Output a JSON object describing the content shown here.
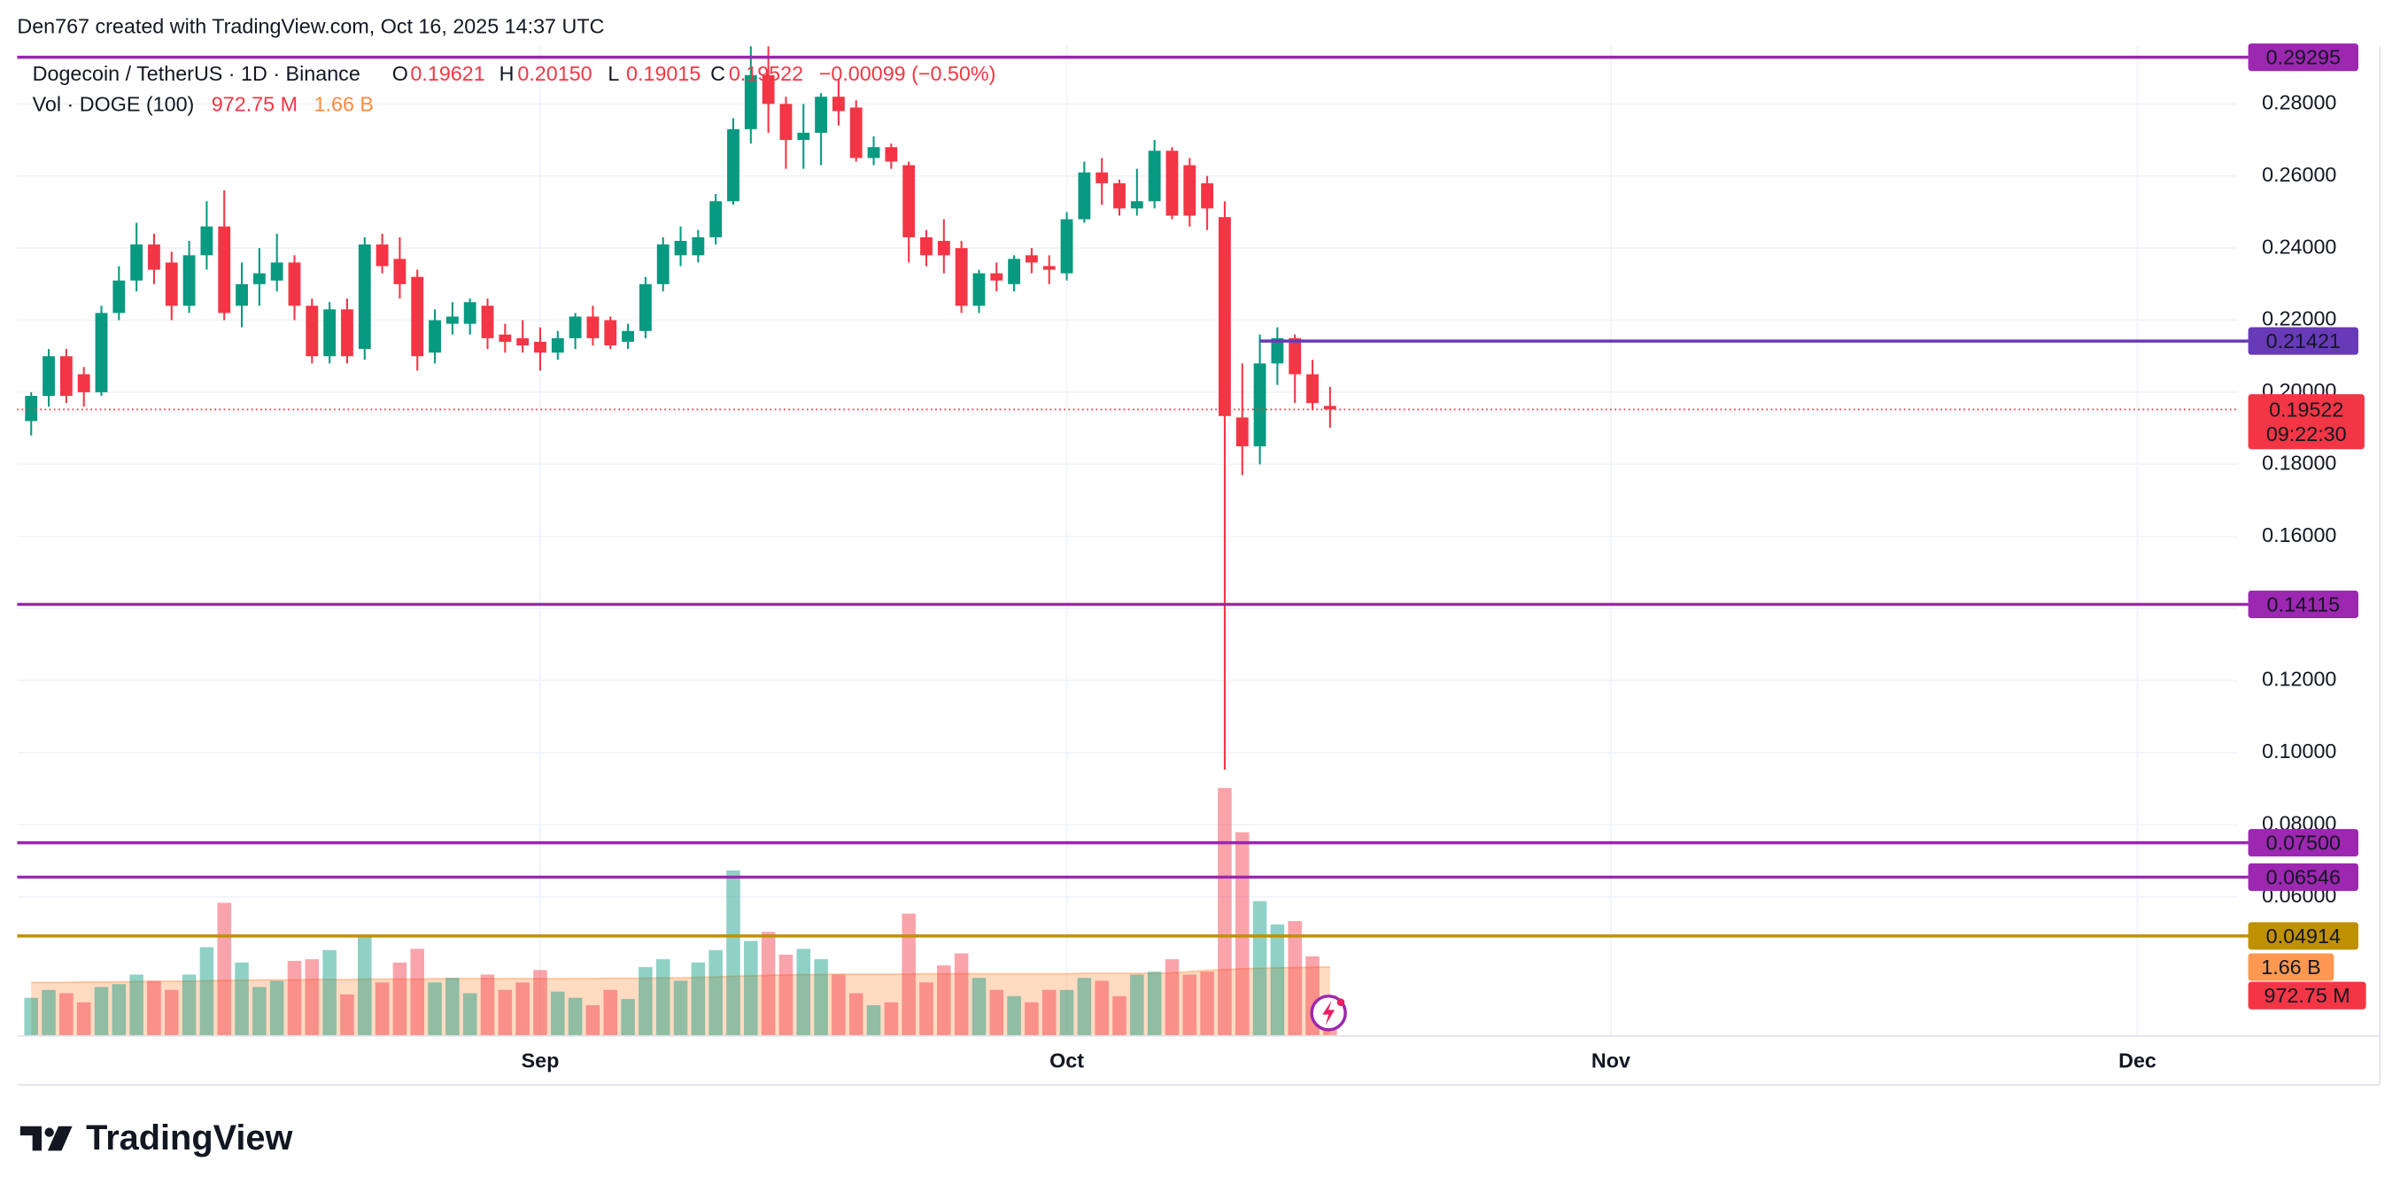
{
  "header": {
    "attribution": "Den767 created with TradingView.com, Oct 16, 2025 14:37 UTC"
  },
  "chart_data": {
    "type": "candlestick",
    "title": "Dogecoin / TetherUS · 1D · Binance",
    "legend": {
      "o_label": "O",
      "open": "0.19621",
      "h_label": "H",
      "high": "0.20150",
      "l_label": "L",
      "low": "0.19015",
      "c_label": "C",
      "close": "0.19522",
      "change": "−0.00099 (−0.50%)"
    },
    "x": [
      2,
      3,
      4,
      5,
      6,
      7,
      8,
      9,
      10,
      11,
      12,
      13,
      14,
      15,
      16,
      17,
      18,
      19,
      20,
      21,
      22,
      23,
      24,
      25,
      26,
      27,
      28,
      29,
      30,
      31,
      32,
      33,
      34,
      35,
      36,
      37,
      38,
      39,
      40,
      41,
      42,
      43,
      44,
      45,
      46,
      47,
      48,
      49,
      50,
      51,
      52,
      53,
      54,
      55,
      56,
      57,
      58,
      59,
      60,
      61,
      62,
      63,
      64,
      65,
      66,
      67,
      68,
      69,
      70,
      71,
      72,
      73,
      74,
      75,
      76
    ],
    "xlim": [
      1.2,
      127.7
    ],
    "xticks": [
      {
        "value": 31,
        "label": "Sep"
      },
      {
        "value": 61,
        "label": "Oct"
      },
      {
        "value": 92,
        "label": "Nov"
      },
      {
        "value": 122,
        "label": "Dec"
      }
    ],
    "open": [
      0.192,
      0.199,
      0.21,
      0.205,
      0.2,
      0.222,
      0.231,
      0.241,
      0.236,
      0.224,
      0.238,
      0.246,
      0.224,
      0.23,
      0.231,
      0.236,
      0.224,
      0.21,
      0.223,
      0.212,
      0.241,
      0.237,
      0.232,
      0.211,
      0.219,
      0.219,
      0.224,
      0.216,
      0.215,
      0.214,
      0.211,
      0.215,
      0.221,
      0.22,
      0.214,
      0.217,
      0.23,
      0.238,
      0.238,
      0.243,
      0.253,
      0.273,
      0.288,
      0.28,
      0.27,
      0.272,
      0.282,
      0.279,
      0.265,
      0.268,
      0.263,
      0.243,
      0.242,
      0.24,
      0.224,
      0.233,
      0.23,
      0.238,
      0.235,
      0.233,
      0.248,
      0.261,
      0.258,
      0.251,
      0.253,
      0.267,
      0.263,
      0.258,
      0.2486,
      0.193,
      0.185,
      0.208,
      0.215,
      0.205,
      0.19621
    ],
    "high": [
      0.2,
      0.212,
      0.212,
      0.207,
      0.224,
      0.235,
      0.247,
      0.244,
      0.239,
      0.242,
      0.253,
      0.256,
      0.236,
      0.24,
      0.244,
      0.238,
      0.226,
      0.225,
      0.226,
      0.243,
      0.244,
      0.243,
      0.234,
      0.223,
      0.225,
      0.226,
      0.226,
      0.219,
      0.22,
      0.218,
      0.217,
      0.222,
      0.224,
      0.221,
      0.219,
      0.232,
      0.243,
      0.246,
      0.245,
      0.255,
      0.276,
      0.296,
      0.296,
      0.282,
      0.28,
      0.283,
      0.287,
      0.281,
      0.271,
      0.269,
      0.264,
      0.245,
      0.248,
      0.242,
      0.234,
      0.236,
      0.238,
      0.24,
      0.238,
      0.25,
      0.264,
      0.265,
      0.259,
      0.262,
      0.27,
      0.268,
      0.265,
      0.26,
      0.253,
      0.208,
      0.216,
      0.218,
      0.216,
      0.209,
      0.2015
    ],
    "low": [
      0.188,
      0.196,
      0.197,
      0.196,
      0.199,
      0.22,
      0.228,
      0.23,
      0.22,
      0.222,
      0.234,
      0.22,
      0.218,
      0.224,
      0.228,
      0.22,
      0.208,
      0.208,
      0.208,
      0.209,
      0.233,
      0.226,
      0.206,
      0.208,
      0.216,
      0.216,
      0.212,
      0.211,
      0.211,
      0.206,
      0.209,
      0.212,
      0.213,
      0.212,
      0.212,
      0.215,
      0.228,
      0.235,
      0.236,
      0.241,
      0.252,
      0.269,
      0.272,
      0.262,
      0.262,
      0.263,
      0.274,
      0.264,
      0.263,
      0.262,
      0.236,
      0.235,
      0.233,
      0.222,
      0.222,
      0.228,
      0.228,
      0.233,
      0.23,
      0.231,
      0.247,
      0.252,
      0.249,
      0.249,
      0.251,
      0.248,
      0.246,
      0.245,
      0.0953,
      0.177,
      0.18,
      0.202,
      0.197,
      0.195,
      0.19015
    ],
    "close": [
      0.199,
      0.21,
      0.199,
      0.2,
      0.222,
      0.231,
      0.241,
      0.234,
      0.224,
      0.238,
      0.246,
      0.222,
      0.23,
      0.233,
      0.236,
      0.224,
      0.21,
      0.223,
      0.21,
      0.241,
      0.235,
      0.23,
      0.21,
      0.22,
      0.221,
      0.225,
      0.215,
      0.214,
      0.213,
      0.211,
      0.215,
      0.221,
      0.215,
      0.213,
      0.217,
      0.23,
      0.241,
      0.242,
      0.243,
      0.253,
      0.273,
      0.288,
      0.28,
      0.27,
      0.272,
      0.282,
      0.278,
      0.265,
      0.268,
      0.264,
      0.243,
      0.238,
      0.238,
      0.224,
      0.233,
      0.231,
      0.237,
      0.236,
      0.234,
      0.248,
      0.261,
      0.258,
      0.251,
      0.253,
      0.267,
      0.249,
      0.249,
      0.251,
      0.1934,
      0.185,
      0.208,
      0.215,
      0.205,
      0.197,
      0.19522
    ],
    "up_color": "#089981",
    "down_color": "#f23645",
    "ylim": [
      0.0214,
      0.2961
    ],
    "yticks": [
      {
        "value": 0.06,
        "label": "0.06000"
      },
      {
        "value": 0.08,
        "label": "0.08000"
      },
      {
        "value": 0.1,
        "label": "0.10000"
      },
      {
        "value": 0.12,
        "label": "0.12000"
      },
      {
        "value": 0.14,
        "label": "0.14000"
      },
      {
        "value": 0.16,
        "label": "0.16000"
      },
      {
        "value": 0.18,
        "label": "0.18000"
      },
      {
        "value": 0.2,
        "label": "0.20000"
      },
      {
        "value": 0.22,
        "label": "0.22000"
      },
      {
        "value": 0.24,
        "label": "0.24000"
      },
      {
        "value": 0.26,
        "label": "0.26000"
      },
      {
        "value": 0.28,
        "label": "0.28000"
      }
    ],
    "grid": true,
    "volume": {
      "title": "Vol · DOGE (100)",
      "values": [
        920000000,
        1110000000,
        1030000000,
        810000000,
        1180000000,
        1250000000,
        1480000000,
        1330000000,
        1110000000,
        1480000000,
        2140000000,
        3210000000,
        1770000000,
        1180000000,
        1330000000,
        1810000000,
        1850000000,
        2070000000,
        1000000000,
        2400000000,
        1290000000,
        1770000000,
        2100000000,
        1290000000,
        1400000000,
        1030000000,
        1480000000,
        1110000000,
        1290000000,
        1590000000,
        1070000000,
        920000000,
        740000000,
        1110000000,
        890000000,
        1660000000,
        1850000000,
        1330000000,
        1770000000,
        2070000000,
        3990000000,
        2290000000,
        2510000000,
        1960000000,
        2100000000,
        1850000000,
        1480000000,
        1030000000,
        740000000,
        810000000,
        2950000000,
        1290000000,
        1700000000,
        1990000000,
        1400000000,
        1110000000,
        960000000,
        810000000,
        1110000000,
        1110000000,
        1400000000,
        1330000000,
        960000000,
        1480000000,
        1550000000,
        1850000000,
        1480000000,
        1550000000,
        5980000000,
        4910000000,
        3250000000,
        2690000000,
        2770000000,
        1920000000,
        972750000
      ],
      "ma": [
        1290000000,
        1290000000,
        1290000000,
        1300000000,
        1300000000,
        1300000000,
        1310000000,
        1310000000,
        1320000000,
        1320000000,
        1330000000,
        1340000000,
        1340000000,
        1350000000,
        1350000000,
        1350000000,
        1360000000,
        1360000000,
        1360000000,
        1370000000,
        1370000000,
        1370000000,
        1370000000,
        1380000000,
        1380000000,
        1380000000,
        1380000000,
        1380000000,
        1380000000,
        1380000000,
        1380000000,
        1380000000,
        1380000000,
        1390000000,
        1390000000,
        1390000000,
        1400000000,
        1400000000,
        1410000000,
        1420000000,
        1440000000,
        1450000000,
        1460000000,
        1470000000,
        1480000000,
        1480000000,
        1490000000,
        1490000000,
        1490000000,
        1490000000,
        1490000000,
        1500000000,
        1500000000,
        1500000000,
        1500000000,
        1500000000,
        1500000000,
        1500000000,
        1500000000,
        1500000000,
        1510000000,
        1510000000,
        1510000000,
        1510000000,
        1510000000,
        1520000000,
        1550000000,
        1580000000,
        1600000000,
        1620000000,
        1630000000,
        1640000000,
        1650000000,
        1655000000,
        1660000000
      ],
      "ma_color": "#ff9850",
      "vlim": [
        0,
        6000000000
      ],
      "last_label": "972.75 M",
      "ma_label": "1.66 B"
    },
    "last_price": {
      "value": 0.19522,
      "countdown": "09:22:30",
      "color": "#f23645"
    },
    "levels": [
      {
        "value": 0.29295,
        "color": "#9c27b0"
      },
      {
        "value": 0.21421,
        "color": "#673ab7",
        "x_start": 72
      },
      {
        "value": 0.14115,
        "color": "#9c27b0"
      },
      {
        "value": 0.075,
        "label": "0.07500",
        "color": "#9c27b0"
      },
      {
        "value": 0.06546,
        "color": "#9c27b0"
      },
      {
        "value": 0.04914,
        "color": "#bf9000"
      }
    ]
  },
  "footer": {
    "logo": "TradingView"
  }
}
